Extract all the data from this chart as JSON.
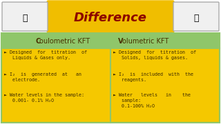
{
  "title": "Difference",
  "title_bg": "#F0BE00",
  "title_color": "#8B0000",
  "header_bg": "#8FC66A",
  "header_color": "#4A3000",
  "content_bg": "#F5C800",
  "content_color": "#3A2800",
  "border_color": "#8FC66A",
  "outer_bg": "#FFFFFF",
  "col1_header_C": "C",
  "col1_header_rest": "oulometric KFT",
  "col2_header_V": "V",
  "col2_header_rest": "olumetric KFT",
  "col1_items": [
    "► Designed  for  titration  of\n   Liquids & Gases only.",
    "► I₂  is  generated  at   an\n   electrode.",
    "► Water levels in the sample:\n   0.001- 0.1% H₂O"
  ],
  "col2_items": [
    "► Designed  for  titration  of\n   Solids, liquids & gases.",
    "► I₂  is  included  with  the\n   reagents.",
    "► Water   levels   in    the\n   sample:\n   0.1-100% H₂O"
  ],
  "fig_width": 3.2,
  "fig_height": 1.8,
  "dpi": 100
}
